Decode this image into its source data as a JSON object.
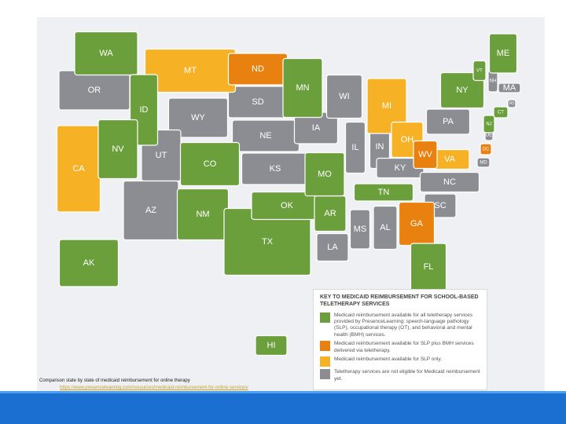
{
  "map": {
    "legend": {
      "title": "KEY TO MEDICAID REIMBURSEMENT FOR SCHOOL-BASED TELETHERAPY SERVICES",
      "items": [
        {
          "color": "#6a9f3c",
          "text": "Medicaid reimbursement available for all teletherapy services provided by PresenceLearning: speech-language pathology (SLP), occupational therapy (OT), and behavioral and mental health (BMH) services.",
          "states": [
            "WA",
            "ID",
            "NV",
            "CO",
            "NM",
            "TX",
            "OK",
            "AR",
            "MN",
            "MO",
            "TN",
            "FL",
            "AK",
            "HI",
            "NY",
            "ME",
            "VT",
            "CT",
            "NJ"
          ]
        },
        {
          "color": "#e8810f",
          "text": "Medicaid reimbursement available for SLP plus BMH services delivered via teletherapy.",
          "states": [
            "ND",
            "WV",
            "GA",
            "DC"
          ]
        },
        {
          "color": "#f6b224",
          "text": "Medicaid reimbursement available for SLP only.",
          "states": [
            "MT",
            "CA",
            "MI",
            "OH",
            "VA"
          ]
        },
        {
          "color": "#8c8d92",
          "text": "Teletherapy services are not eligible for Medicaid reimbursement yet.",
          "states": [
            "OR",
            "WY",
            "UT",
            "AZ",
            "SD",
            "NE",
            "KS",
            "IA",
            "WI",
            "IL",
            "IN",
            "KY",
            "LA",
            "MS",
            "AL",
            "SC",
            "NC",
            "PA",
            "NH",
            "MA",
            "RI",
            "DE",
            "MD"
          ]
        }
      ]
    },
    "caption": "Comparison state by state of medicaid reimbursement for online therapy",
    "link": "https://www.presencelearning.com/resources/medicaid-reimbursement-for-online-services/"
  }
}
